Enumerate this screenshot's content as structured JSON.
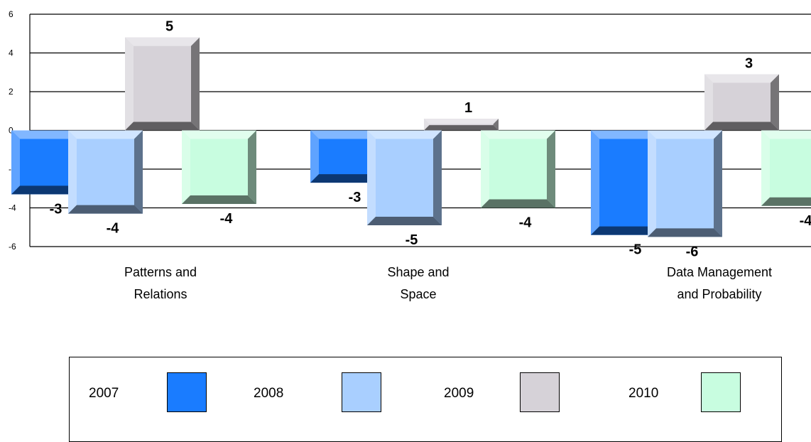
{
  "chart_data": {
    "type": "bar",
    "categories": [
      [
        "Patterns and",
        "Relations"
      ],
      [
        "Shape and",
        "Space"
      ],
      [
        "Data Management",
        "and Probability"
      ]
    ],
    "series": [
      {
        "name": "2007",
        "values": [
          -3,
          -3,
          -5
        ],
        "color": "#1a7cff"
      },
      {
        "name": "2008",
        "values": [
          -4,
          -5,
          -6
        ],
        "color": "#a9cfff"
      },
      {
        "name": "2009",
        "values": [
          5,
          1,
          3
        ],
        "color": "#d6d2d8"
      },
      {
        "name": "2010",
        "values": [
          -4,
          -4,
          -4
        ],
        "color": "#c8fde0"
      }
    ],
    "bar_plot_values": [
      [
        -3.3,
        -2.7,
        -5.4
      ],
      [
        -4.3,
        -4.9,
        -5.5
      ],
      [
        4.8,
        0.6,
        2.9
      ],
      [
        -3.8,
        -4.0,
        -3.9
      ]
    ],
    "ylim": [
      -6,
      6
    ],
    "yticks": [
      "-6",
      "-4",
      "-2",
      "0",
      "2",
      "4",
      "6"
    ],
    "grid": true,
    "legend_position": "bottom"
  }
}
